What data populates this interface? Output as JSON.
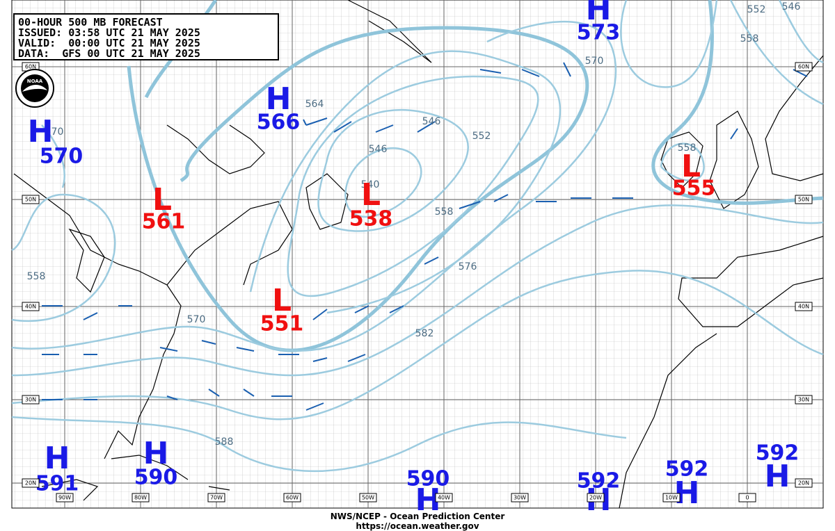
{
  "header": {
    "lines": [
      "00-HOUR 500 MB FORECAST",
      "ISSUED: 03:58 UTC 21 MAY 2025",
      "VALID:  00:00 UTC 21 MAY 2025",
      "DATA:  GFS 00 UTC 21 MAY 2025"
    ]
  },
  "logo": "NOAA",
  "systems": [
    {
      "symbol": "H",
      "value": "570"
    },
    {
      "symbol": "L",
      "value": "561"
    },
    {
      "symbol": "H",
      "value": "566"
    },
    {
      "symbol": "L",
      "value": "538"
    },
    {
      "symbol": "L",
      "value": "551"
    },
    {
      "symbol": "H",
      "value": "573"
    },
    {
      "symbol": "L",
      "value": "555"
    },
    {
      "symbol": "H",
      "value": "591"
    },
    {
      "symbol": "H",
      "value": "590"
    },
    {
      "symbol": "H",
      "value": "590"
    },
    {
      "symbol": "H",
      "value": "592"
    },
    {
      "symbol": "H",
      "value": "592"
    },
    {
      "symbol": "H",
      "value": "592"
    }
  ],
  "contour_labels": [
    "570",
    "564",
    "546",
    "552",
    "546",
    "540",
    "558",
    "558",
    "570",
    "576",
    "582",
    "588",
    "570",
    "558",
    "552",
    "546",
    "558"
  ],
  "latitude_labels": [
    "60N",
    "50N",
    "40N",
    "30N",
    "20N"
  ],
  "longitude_labels": [
    "90W",
    "80W",
    "70W",
    "60W",
    "50W",
    "40W",
    "30W",
    "20W",
    "10W",
    "0"
  ],
  "footer": {
    "agency": "NWS/NCEP - Ocean Prediction Center",
    "url": "https://ocean.weather.gov"
  }
}
